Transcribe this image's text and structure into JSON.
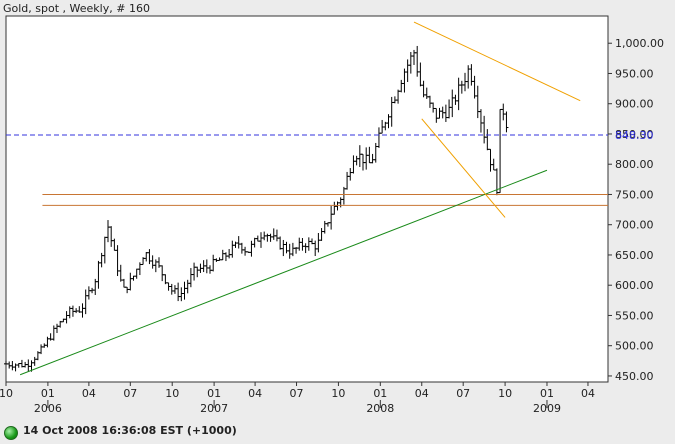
{
  "chart_data": {
    "type": "candlestick",
    "title": "Gold, spot , Weekly, # 160",
    "y_axis_side": "right",
    "ylim": [
      440,
      1045
    ],
    "y_ticks": [
      450,
      500,
      550,
      600,
      650,
      700,
      750,
      800,
      850,
      900,
      950,
      1000
    ],
    "y_tick_labels": [
      "450.00",
      "500.00",
      "550.00",
      "600.00",
      "650.00",
      "700.00",
      "750.00",
      "800.00",
      "850.00",
      "900.00",
      "950.00",
      "1,000.00"
    ],
    "x_range": [
      "2005-10-01",
      "2009-05-15"
    ],
    "x_ticks": [
      {
        "date": "2005-10-01",
        "label": "10"
      },
      {
        "date": "2006-01-01",
        "label": "01"
      },
      {
        "date": "2006-04-01",
        "label": "04"
      },
      {
        "date": "2006-07-01",
        "label": "07"
      },
      {
        "date": "2006-10-01",
        "label": "10"
      },
      {
        "date": "2007-01-01",
        "label": "01"
      },
      {
        "date": "2007-04-01",
        "label": "04"
      },
      {
        "date": "2007-07-01",
        "label": "07"
      },
      {
        "date": "2007-10-01",
        "label": "10"
      },
      {
        "date": "2008-01-01",
        "label": "01"
      },
      {
        "date": "2008-04-01",
        "label": "04"
      },
      {
        "date": "2008-07-01",
        "label": "07"
      },
      {
        "date": "2008-10-01",
        "label": "10"
      },
      {
        "date": "2009-01-01",
        "label": "01"
      },
      {
        "date": "2009-04-01",
        "label": "04"
      }
    ],
    "year_labels": [
      {
        "date": "2006-01-01",
        "label": "2006"
      },
      {
        "date": "2007-01-01",
        "label": "2007"
      },
      {
        "date": "2008-01-01",
        "label": "2008"
      },
      {
        "date": "2009-01-01",
        "label": "2009"
      }
    ],
    "close_anchors": [
      [
        "2005-10-01",
        470
      ],
      [
        "2005-11-15",
        468
      ],
      [
        "2005-12-15",
        490
      ],
      [
        "2006-01-15",
        525
      ],
      [
        "2006-02-15",
        555
      ],
      [
        "2006-03-15",
        560
      ],
      [
        "2006-04-15",
        610
      ],
      [
        "2006-05-12",
        700
      ],
      [
        "2006-06-15",
        590
      ],
      [
        "2006-07-05",
        610
      ],
      [
        "2006-08-01",
        655
      ],
      [
        "2006-09-01",
        630
      ],
      [
        "2006-10-01",
        590
      ],
      [
        "2006-10-20",
        585
      ],
      [
        "2006-11-20",
        625
      ],
      [
        "2006-12-20",
        630
      ],
      [
        "2007-01-20",
        645
      ],
      [
        "2007-02-25",
        670
      ],
      [
        "2007-03-15",
        655
      ],
      [
        "2007-04-20",
        690
      ],
      [
        "2007-05-20",
        670
      ],
      [
        "2007-06-20",
        655
      ],
      [
        "2007-07-20",
        670
      ],
      [
        "2007-08-15",
        665
      ],
      [
        "2007-09-15",
        720
      ],
      [
        "2007-10-10",
        750
      ],
      [
        "2007-11-05",
        820
      ],
      [
        "2007-12-10",
        800
      ],
      [
        "2008-01-15",
        880
      ],
      [
        "2008-02-20",
        950
      ],
      [
        "2008-03-15",
        985
      ],
      [
        "2008-04-01",
        920
      ],
      [
        "2008-05-01",
        880
      ],
      [
        "2008-06-01",
        890
      ],
      [
        "2008-07-15",
        960
      ],
      [
        "2008-08-10",
        870
      ],
      [
        "2008-08-25",
        820
      ],
      [
        "2008-09-05",
        790
      ],
      [
        "2008-09-12",
        745
      ],
      [
        "2008-09-20",
        880
      ],
      [
        "2008-09-28",
        890
      ],
      [
        "2008-10-03",
        870
      ],
      [
        "2008-10-10",
        860
      ]
    ],
    "horizontal_lines": [
      {
        "value": 848.3,
        "style": "dashed",
        "color": "#3333dd",
        "label": "848.30"
      },
      {
        "value": 750,
        "style": "solid",
        "color": "#c87533"
      },
      {
        "value": 732,
        "style": "solid",
        "color": "#c87533"
      }
    ],
    "trend_lines": [
      {
        "name": "support",
        "color": "#1a8a1a",
        "from": [
          "2005-11-01",
          452
        ],
        "to": [
          "2009-01-01",
          790
        ]
      },
      {
        "name": "upper",
        "color": "#f0a000",
        "from": [
          "2008-03-15",
          1035
        ],
        "to": [
          "2009-03-15",
          905
        ]
      },
      {
        "name": "lower",
        "color": "#f0a000",
        "from": [
          "2008-04-01",
          875
        ],
        "to": [
          "2008-10-01",
          712
        ]
      }
    ],
    "colors": {
      "bars": "#000000",
      "plot_background": "#ffffff",
      "frame": "#333333"
    }
  },
  "status": {
    "text": "14 Oct 2008 16:36:08  EST (+1000)"
  }
}
